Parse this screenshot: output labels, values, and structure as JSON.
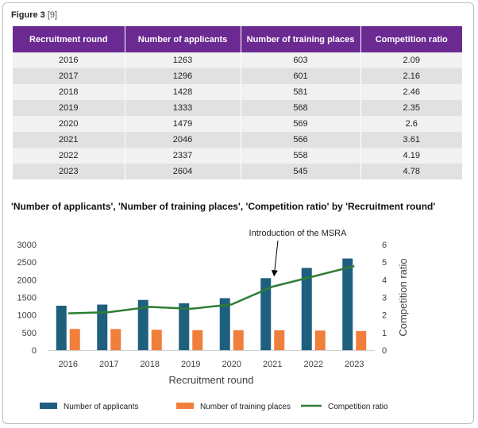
{
  "figure": {
    "label": "Figure 3",
    "ref": "[9]"
  },
  "table": {
    "headers": [
      "Recruitment round",
      "Number of applicants",
      "Number of training places",
      "Competition ratio"
    ],
    "rows": [
      [
        "2016",
        "1263",
        "603",
        "2.09"
      ],
      [
        "2017",
        "1296",
        "601",
        "2.16"
      ],
      [
        "2018",
        "1428",
        "581",
        "2.46"
      ],
      [
        "2019",
        "1333",
        "568",
        "2.35"
      ],
      [
        "2020",
        "1479",
        "569",
        "2.6"
      ],
      [
        "2021",
        "2046",
        "566",
        "3.61"
      ],
      [
        "2022",
        "2337",
        "558",
        "4.19"
      ],
      [
        "2023",
        "2604",
        "545",
        "4.78"
      ]
    ]
  },
  "chart_title": "'Number of applicants', 'Number of training places', 'Competition ratio' by 'Recruitment round'",
  "colors": {
    "applicants": "#1f5f7e",
    "places": "#f07f3c",
    "ratio": "#2e7d32",
    "header": "#6b2a92"
  },
  "chart_data": {
    "type": "bar",
    "categories": [
      "2016",
      "2017",
      "2018",
      "2019",
      "2020",
      "2021",
      "2022",
      "2023"
    ],
    "series": [
      {
        "name": "Number of applicants",
        "kind": "bar",
        "axis": "left",
        "values": [
          1263,
          1296,
          1428,
          1333,
          1479,
          2046,
          2337,
          2604
        ]
      },
      {
        "name": "Number of training places",
        "kind": "bar",
        "axis": "left",
        "values": [
          603,
          601,
          581,
          568,
          569,
          566,
          558,
          545
        ]
      },
      {
        "name": "Competition ratio",
        "kind": "line",
        "axis": "right",
        "values": [
          2.09,
          2.16,
          2.46,
          2.35,
          2.6,
          3.61,
          4.19,
          4.78
        ]
      }
    ],
    "xlabel": "Recruitment round",
    "ylabel": "",
    "y2label": "Competition ratio",
    "ylim": [
      0,
      3000
    ],
    "y2lim": [
      0,
      6
    ],
    "yticks": [
      0,
      500,
      1000,
      1500,
      2000,
      2500,
      3000
    ],
    "y2ticks": [
      0,
      1,
      2,
      3,
      4,
      5,
      6
    ],
    "grid": false,
    "legend_position": "bottom",
    "annotation": {
      "text": "Introduction of the MSRA",
      "category": "2021"
    }
  }
}
